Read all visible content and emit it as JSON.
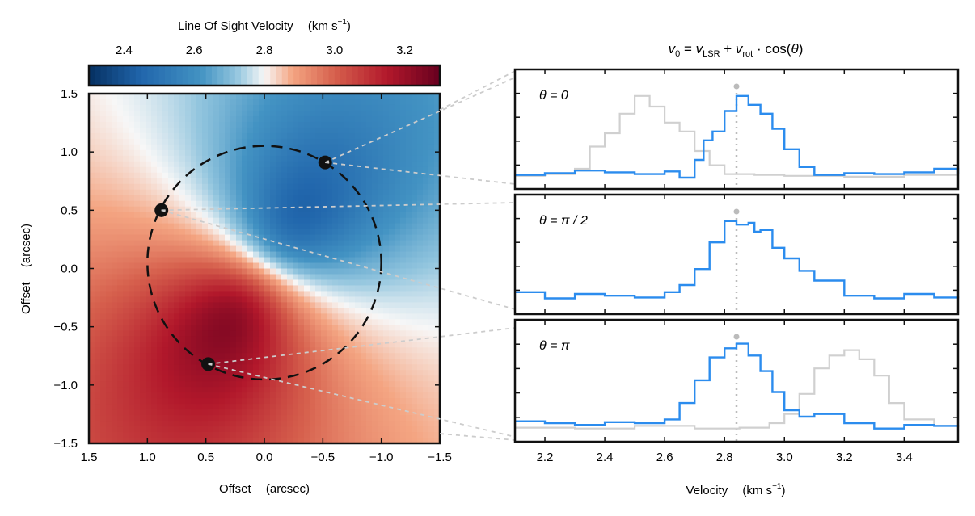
{
  "chart_data": [
    {
      "type": "heatmap",
      "title": "",
      "colorbar": {
        "label_main": "Line Of Sight Velocity",
        "label_unit": "(km s",
        "label_unit_exp": "−1",
        "label_unit_close": ")",
        "ticks": [
          "2.4",
          "2.6",
          "2.8",
          "3.0",
          "3.2"
        ],
        "range": [
          2.3,
          3.3
        ],
        "colormap": "RdBu_r",
        "low_color": "#08306b",
        "mid_color": "#f7f7f7",
        "high_color": "#67000d"
      },
      "xlabel": "Offset",
      "xlabel_unit": "(arcsec)",
      "ylabel": "Offset",
      "ylabel_unit": "(arcsec)",
      "xlim": [
        1.5,
        -1.5
      ],
      "ylim": [
        -1.5,
        1.5
      ],
      "xticks": [
        "1.5",
        "1.0",
        "0.5",
        "0.0",
        "−0.5",
        "−1.0",
        "−1.5"
      ],
      "yticks": [
        "1.5",
        "1.0",
        "0.5",
        "0.0",
        "−0.5",
        "−1.0",
        "−1.5"
      ],
      "systemic_velocity": 2.84,
      "ring": {
        "center": [
          0.0,
          0.05
        ],
        "radius": 1.0
      },
      "markers": [
        {
          "theta": "0",
          "x": -0.52,
          "y": 0.91
        },
        {
          "theta": "π/2",
          "x": 0.88,
          "y": 0.5
        },
        {
          "theta": "π",
          "x": 0.48,
          "y": -0.82
        }
      ]
    },
    {
      "type": "line",
      "title_tex": "v0 = vLSR + vrot · cos(θ)",
      "xlabel": "Velocity",
      "xlabel_unit": "(km s",
      "xlabel_unit_exp": "−1",
      "xlabel_unit_close": ")",
      "xlim": [
        2.1,
        3.58
      ],
      "xticks": [
        "2.2",
        "2.4",
        "2.6",
        "2.8",
        "3.0",
        "3.2",
        "3.4"
      ],
      "systemic_velocity": 2.84,
      "panels": [
        {
          "label": "θ = 0",
          "series": [
            {
              "role": "shifted",
              "color": "#d0d0d0",
              "x": [
                2.1,
                2.2,
                2.3,
                2.35,
                2.4,
                2.45,
                2.5,
                2.55,
                2.6,
                2.65,
                2.7,
                2.75,
                2.8,
                2.9,
                3.0,
                3.2,
                3.4,
                3.58
              ],
              "y": [
                0.02,
                0.04,
                0.1,
                0.35,
                0.5,
                0.72,
                0.92,
                0.8,
                0.62,
                0.52,
                0.3,
                0.14,
                0.04,
                0.03,
                0.02,
                0.01,
                0.03,
                0.05
              ]
            },
            {
              "role": "aligned",
              "color": "#2b8cee",
              "x": [
                2.1,
                2.2,
                2.3,
                2.4,
                2.5,
                2.6,
                2.65,
                2.7,
                2.73,
                2.76,
                2.8,
                2.84,
                2.88,
                2.92,
                2.96,
                3.0,
                3.05,
                3.1,
                3.2,
                3.3,
                3.4,
                3.5,
                3.58
              ],
              "y": [
                0.03,
                0.05,
                0.08,
                0.06,
                0.04,
                0.07,
                0.0,
                0.2,
                0.42,
                0.52,
                0.75,
                0.92,
                0.82,
                0.72,
                0.55,
                0.32,
                0.12,
                0.03,
                0.05,
                0.04,
                0.06,
                0.1,
                0.04
              ]
            }
          ]
        },
        {
          "label": "θ = π / 2",
          "series": [
            {
              "role": "aligned",
              "color": "#2b8cee",
              "x": [
                2.1,
                2.2,
                2.3,
                2.4,
                2.5,
                2.6,
                2.65,
                2.7,
                2.75,
                2.8,
                2.84,
                2.88,
                2.9,
                2.92,
                2.96,
                3.0,
                3.05,
                3.1,
                3.2,
                3.3,
                3.4,
                3.5,
                3.58
              ],
              "y": [
                0.12,
                0.05,
                0.1,
                0.08,
                0.06,
                0.12,
                0.2,
                0.38,
                0.68,
                0.92,
                0.88,
                0.9,
                0.8,
                0.82,
                0.62,
                0.5,
                0.36,
                0.25,
                0.08,
                0.05,
                0.1,
                0.06,
                0.05
              ]
            }
          ]
        },
        {
          "label": "θ = π",
          "series": [
            {
              "role": "shifted",
              "color": "#d0d0d0",
              "x": [
                2.1,
                2.3,
                2.5,
                2.7,
                2.85,
                2.95,
                3.0,
                3.05,
                3.1,
                3.15,
                3.2,
                3.25,
                3.3,
                3.35,
                3.4,
                3.5,
                3.58
              ],
              "y": [
                0.03,
                0.02,
                0.05,
                0.02,
                0.03,
                0.08,
                0.18,
                0.4,
                0.68,
                0.82,
                0.88,
                0.78,
                0.6,
                0.3,
                0.12,
                0.05,
                0.03
              ]
            },
            {
              "role": "aligned",
              "color": "#2b8cee",
              "x": [
                2.1,
                2.2,
                2.3,
                2.4,
                2.5,
                2.6,
                2.65,
                2.7,
                2.75,
                2.8,
                2.84,
                2.88,
                2.92,
                2.96,
                3.0,
                3.05,
                3.1,
                3.2,
                3.3,
                3.4,
                3.5,
                3.58
              ],
              "y": [
                0.1,
                0.08,
                0.06,
                0.09,
                0.08,
                0.12,
                0.3,
                0.55,
                0.8,
                0.9,
                0.95,
                0.82,
                0.65,
                0.42,
                0.22,
                0.15,
                0.18,
                0.08,
                0.02,
                0.06,
                0.05,
                0.04
              ]
            }
          ]
        }
      ]
    }
  ]
}
